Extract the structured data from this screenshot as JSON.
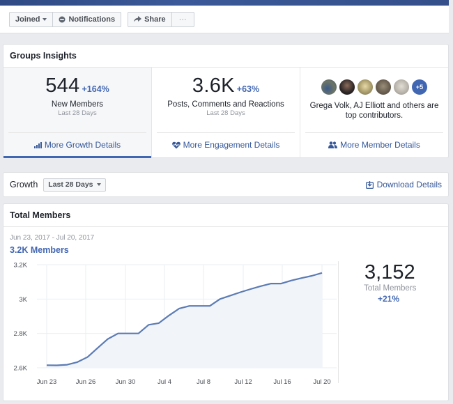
{
  "action_bar": {
    "joined_label": "Joined",
    "notifications_label": "Notifications",
    "share_label": "Share",
    "more_label": "···"
  },
  "insights": {
    "title": "Groups Insights",
    "columns": [
      {
        "value": "544",
        "change": "+164%",
        "label": "New Members",
        "sub": "Last 28 Days",
        "link": "More Growth Details",
        "icon": "bar-chart-icon"
      },
      {
        "value": "3.6K",
        "change": "+63%",
        "label": "Posts, Comments and Reactions",
        "sub": "Last 28 Days",
        "link": "More Engagement Details",
        "icon": "heart-pulse-icon"
      },
      {
        "contributors_text": "Grega Volk, AJ Elliott and others are top contributors.",
        "more_count": "+5",
        "link": "More Member Details",
        "icon": "people-icon"
      }
    ]
  },
  "growth": {
    "label": "Growth",
    "range_select": "Last 28 Days",
    "download_label": "Download Details"
  },
  "total_members": {
    "title": "Total Members",
    "date_range": "Jun 23, 2017 - Jul 20, 2017",
    "summary": "3.2K Members",
    "stat_value": "3,152",
    "stat_label": "Total Members",
    "stat_change": "+21%"
  },
  "colors": {
    "accent": "#4267b2",
    "link": "#365899",
    "line": "#5b7bb4",
    "area": "#f1f4f9"
  },
  "chart_data": {
    "type": "area",
    "title": "Total Members",
    "xlabel": "",
    "ylabel": "",
    "ylim": [
      2600,
      3200
    ],
    "yticks": [
      "2.6K",
      "2.8K",
      "3K",
      "3.2K"
    ],
    "xticks": [
      "Jun 23",
      "Jun 26",
      "Jun 30",
      "Jul 4",
      "Jul 8",
      "Jul 12",
      "Jul 16",
      "Jul 20"
    ],
    "grid": true,
    "x": [
      "Jun 23",
      "Jun 24",
      "Jun 25",
      "Jun 26",
      "Jun 27",
      "Jun 28",
      "Jun 29",
      "Jun 30",
      "Jul 1",
      "Jul 2",
      "Jul 3",
      "Jul 4",
      "Jul 5",
      "Jul 6",
      "Jul 7",
      "Jul 8",
      "Jul 9",
      "Jul 10",
      "Jul 11",
      "Jul 12",
      "Jul 13",
      "Jul 14",
      "Jul 15",
      "Jul 16",
      "Jul 17",
      "Jul 18",
      "Jul 19",
      "Jul 20"
    ],
    "series": [
      {
        "name": "Total Members",
        "values": [
          2615,
          2614,
          2618,
          2633,
          2662,
          2715,
          2768,
          2800,
          2800,
          2800,
          2850,
          2860,
          2905,
          2945,
          2960,
          2960,
          2960,
          3000,
          3020,
          3040,
          3058,
          3075,
          3090,
          3090,
          3108,
          3122,
          3135,
          3152
        ]
      }
    ]
  }
}
